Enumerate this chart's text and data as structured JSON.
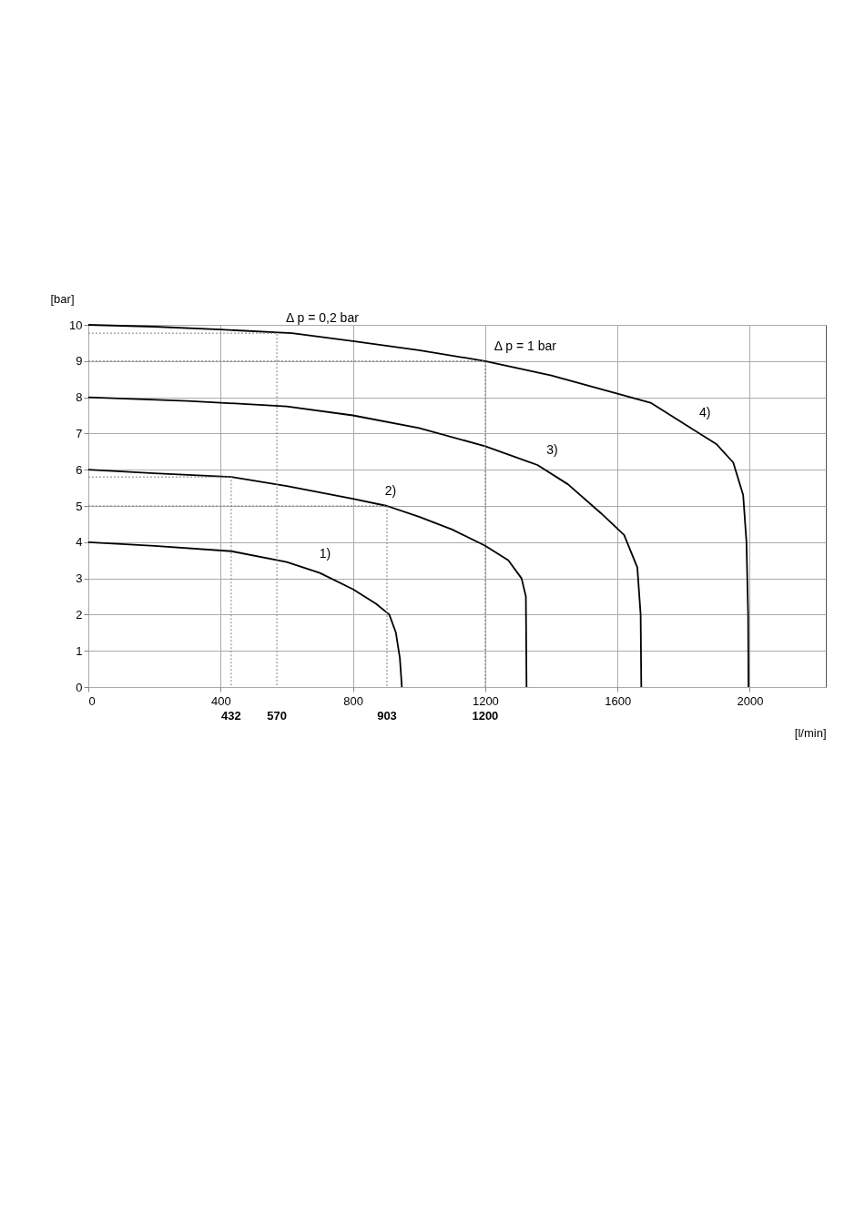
{
  "chart_data": {
    "type": "line",
    "xlabel": "[l/min]",
    "ylabel": "[bar]",
    "xlim": [
      0,
      2230
    ],
    "ylim": [
      0,
      10
    ],
    "xticks": [
      0,
      400,
      800,
      1200,
      1600,
      2000
    ],
    "yticks": [
      0,
      1,
      2,
      3,
      4,
      5,
      6,
      7,
      8,
      9,
      10
    ],
    "grid": true,
    "marker": "none",
    "series": [
      {
        "color": "#000000",
        "line_style": "solid",
        "x": [
          0,
          200,
          432,
          600,
          700,
          800,
          870,
          910,
          930,
          942,
          948
        ],
        "values": [
          4,
          3.9,
          3.75,
          3.45,
          3.15,
          2.7,
          2.3,
          2.0,
          1.5,
          0.8,
          0
        ]
      },
      {
        "color": "#000000",
        "line_style": "solid",
        "x": [
          0,
          200,
          432,
          600,
          800,
          903,
          1000,
          1100,
          1200,
          1270,
          1310,
          1323,
          1325
        ],
        "values": [
          6,
          5.9,
          5.8,
          5.55,
          5.2,
          5.0,
          4.7,
          4.35,
          3.9,
          3.5,
          3.0,
          2.5,
          0
        ]
      },
      {
        "color": "#000000",
        "line_style": "solid",
        "x": [
          0,
          300,
          600,
          800,
          1000,
          1200,
          1358,
          1450,
          1550,
          1620,
          1660,
          1670,
          1672
        ],
        "values": [
          8,
          7.9,
          7.75,
          7.5,
          7.15,
          6.65,
          6.13,
          5.6,
          4.8,
          4.2,
          3.3,
          2,
          0
        ]
      },
      {
        "color": "#000000",
        "line_style": "solid",
        "x": [
          0,
          200,
          400,
          616,
          800,
          1000,
          1200,
          1400,
          1600,
          1700,
          1820,
          1900,
          1950,
          1980,
          1990,
          1995,
          1996
        ],
        "values": [
          10,
          9.95,
          9.87,
          9.77,
          9.55,
          9.3,
          9.0,
          8.6,
          8.1,
          7.85,
          7.16,
          6.7,
          6.2,
          5.3,
          4,
          2,
          0
        ]
      },
      {
        "color": "#808080",
        "line_style": "dotted",
        "x": [
          0,
          570,
          570
        ],
        "values": [
          9.77,
          9.77,
          0
        ]
      },
      {
        "color": "#808080",
        "line_style": "dotted",
        "x": [
          0,
          1200,
          1200
        ],
        "values": [
          9,
          9,
          0
        ]
      },
      {
        "color": "#808080",
        "line_style": "dotted",
        "x": [
          0,
          432,
          432
        ],
        "values": [
          5.8,
          5.8,
          0
        ]
      },
      {
        "color": "#808080",
        "line_style": "dotted",
        "x": [
          0,
          903,
          903
        ],
        "values": [
          5,
          5,
          0
        ]
      }
    ],
    "annotations": [
      {
        "text": "Δ p = 0,2 bar",
        "x": 570,
        "y": 9.77
      },
      {
        "text": "Δ p = 1 bar",
        "x": 1200,
        "y": 9
      },
      {
        "text": "1)",
        "x": 671,
        "y": 3.27
      },
      {
        "text": "2)",
        "x": 869,
        "y": 5.0
      },
      {
        "text": "3)",
        "x": 1358,
        "y": 6.13
      },
      {
        "text": "4)",
        "x": 1820,
        "y": 7.16
      },
      {
        "text": "432",
        "x": 432,
        "y": 0
      },
      {
        "text": "570",
        "x": 570,
        "y": 0
      },
      {
        "text": "903",
        "x": 903,
        "y": 0
      },
      {
        "text": "1200",
        "x": 1200,
        "y": 0
      }
    ]
  }
}
